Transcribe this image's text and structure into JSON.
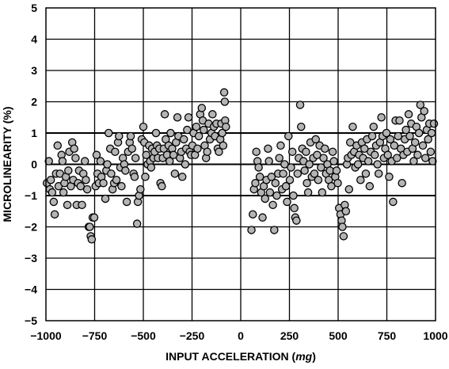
{
  "chart_data": {
    "type": "scatter",
    "title": "",
    "xlabel": "INPUT ACCELERATION (mg)",
    "xlabel_parts": [
      "INPUT ACCELERATION (",
      "mg",
      ")"
    ],
    "ylabel": "MICROLINEARITY (%)",
    "xlim": [
      -1000,
      1000
    ],
    "ylim": [
      -5,
      5
    ],
    "x_ticks": [
      -1000,
      -750,
      -500,
      -250,
      0,
      250,
      500,
      750,
      1000
    ],
    "x_tick_labels": [
      "−1000",
      "−750",
      "−500",
      "−250",
      "0",
      "250",
      "500",
      "750",
      "1000"
    ],
    "y_ticks": [
      5,
      4,
      3,
      2,
      1,
      0,
      -1,
      -2,
      -3,
      -4,
      -5
    ],
    "y_tick_labels": [
      "5",
      "4",
      "3",
      "2",
      "1",
      "0",
      "−1",
      "−2",
      "−3",
      "−4",
      "−5"
    ],
    "grid": true,
    "heavy_gridlines_y": [
      1,
      0,
      -1
    ],
    "legend": "none",
    "marker_fill": "#b4b4b4",
    "marker_edge": "#000000",
    "points": [
      [
        -995,
        -0.6
      ],
      [
        -985,
        0.1
      ],
      [
        -980,
        -0.8
      ],
      [
        -975,
        -0.5
      ],
      [
        -968,
        -0.9
      ],
      [
        -960,
        -1.2
      ],
      [
        -955,
        -1.6
      ],
      [
        -948,
        -0.3
      ],
      [
        -940,
        0.6
      ],
      [
        -935,
        -0.7
      ],
      [
        -928,
        -0.3
      ],
      [
        -920,
        0.3
      ],
      [
        -915,
        0.1
      ],
      [
        -910,
        -0.9
      ],
      [
        -905,
        -0.6
      ],
      [
        -898,
        -0.4
      ],
      [
        -890,
        -1.3
      ],
      [
        -885,
        -0.2
      ],
      [
        -880,
        0.4
      ],
      [
        -872,
        -0.7
      ],
      [
        -865,
        0.7
      ],
      [
        -860,
        -0.5
      ],
      [
        -855,
        0.5
      ],
      [
        -848,
        0.2
      ],
      [
        -842,
        -1.3
      ],
      [
        -835,
        -0.6
      ],
      [
        -830,
        -0.2
      ],
      [
        -822,
        -0.7
      ],
      [
        -815,
        -1.3
      ],
      [
        -808,
        -0.3
      ],
      [
        -800,
        0.1
      ],
      [
        -795,
        -0.5
      ],
      [
        -788,
        -0.8
      ],
      [
        -780,
        -2.0
      ],
      [
        -775,
        -2.0
      ],
      [
        -770,
        -2.3
      ],
      [
        -765,
        -2.4
      ],
      [
        -760,
        -1.7
      ],
      [
        -752,
        -1.7
      ],
      [
        -745,
        -0.7
      ],
      [
        -740,
        0.3
      ],
      [
        -735,
        -0.3
      ],
      [
        -728,
        -0.6
      ],
      [
        -720,
        0.1
      ],
      [
        -715,
        -0.4
      ],
      [
        -705,
        -0.6
      ],
      [
        -695,
        -1.1
      ],
      [
        -690,
        -0.2
      ],
      [
        -685,
        0.0
      ],
      [
        -678,
        1.0
      ],
      [
        -670,
        0.5
      ],
      [
        -665,
        -0.3
      ],
      [
        -658,
        -0.8
      ],
      [
        -650,
        -0.6
      ],
      [
        -645,
        0.4
      ],
      [
        -638,
        -0.5
      ],
      [
        -630,
        0.7
      ],
      [
        -625,
        0.9
      ],
      [
        -618,
        -0.1
      ],
      [
        -612,
        -0.7
      ],
      [
        -605,
        0.2
      ],
      [
        -598,
        0.0
      ],
      [
        -592,
        -0.2
      ],
      [
        -585,
        -1.2
      ],
      [
        -578,
        0.4
      ],
      [
        -570,
        0.7
      ],
      [
        -565,
        0.9
      ],
      [
        -558,
        0.5
      ],
      [
        -550,
        -0.3
      ],
      [
        -545,
        -0.4
      ],
      [
        -540,
        0.2
      ],
      [
        -532,
        -1.9
      ],
      [
        -528,
        -1.2
      ],
      [
        -522,
        -1.0
      ],
      [
        -515,
        -0.8
      ],
      [
        -508,
        0.8
      ],
      [
        -500,
        1.2
      ],
      [
        -495,
        0.7
      ],
      [
        -490,
        -0.4
      ],
      [
        -485,
        0.3
      ],
      [
        -478,
        0.0
      ],
      [
        -470,
        0.6
      ],
      [
        -465,
        0.1
      ],
      [
        -460,
        -0.1
      ],
      [
        -455,
        0.5
      ],
      [
        -448,
        0.2
      ],
      [
        -442,
        0.4
      ],
      [
        -435,
        1.0
      ],
      [
        -430,
        0.6
      ],
      [
        -425,
        0.2
      ],
      [
        -418,
        0.5
      ],
      [
        -412,
        -0.6
      ],
      [
        -405,
        -0.7
      ],
      [
        -400,
        0.2
      ],
      [
        -395,
        0.5
      ],
      [
        -390,
        1.6
      ],
      [
        -385,
        0.8
      ],
      [
        -378,
        0.3
      ],
      [
        -370,
        0.6
      ],
      [
        -365,
        0.1
      ],
      [
        -360,
        1.0
      ],
      [
        -352,
        0.5
      ],
      [
        -345,
        0.3
      ],
      [
        -338,
        -0.3
      ],
      [
        -332,
        0.7
      ],
      [
        -325,
        1.5
      ],
      [
        -320,
        0.9
      ],
      [
        -312,
        0.2
      ],
      [
        -305,
        0.4
      ],
      [
        -300,
        -0.4
      ],
      [
        -292,
        0.8
      ],
      [
        -285,
        0.0
      ],
      [
        -280,
        0.5
      ],
      [
        -275,
        1.1
      ],
      [
        -268,
        1.5
      ],
      [
        -262,
        0.4
      ],
      [
        -255,
        0.3
      ],
      [
        -248,
        0.6
      ],
      [
        -242,
        1.0
      ],
      [
        -235,
        0.3
      ],
      [
        -228,
        1.2
      ],
      [
        -222,
        0.5
      ],
      [
        -215,
        0.9
      ],
      [
        -208,
        1.6
      ],
      [
        -200,
        1.8
      ],
      [
        -195,
        1.4
      ],
      [
        -190,
        1.1
      ],
      [
        -185,
        0.6
      ],
      [
        -178,
        0.2
      ],
      [
        -172,
        0.4
      ],
      [
        -165,
        1.3
      ],
      [
        -158,
        0.8
      ],
      [
        -150,
        1.0
      ],
      [
        -145,
        1.6
      ],
      [
        -138,
        1.2
      ],
      [
        -132,
        0.9
      ],
      [
        -125,
        1.3
      ],
      [
        -118,
        0.5
      ],
      [
        -112,
        0.4
      ],
      [
        -105,
        0.8
      ],
      [
        -100,
        1.3
      ],
      [
        -95,
        1.0
      ],
      [
        -90,
        0.6
      ],
      [
        -85,
        2.3
      ],
      [
        -82,
        2.0
      ],
      [
        -80,
        1.4
      ],
      [
        -76,
        1.2
      ],
      [
        55,
        -2.1
      ],
      [
        62,
        -1.6
      ],
      [
        68,
        -0.8
      ],
      [
        75,
        -0.6
      ],
      [
        80,
        0.4
      ],
      [
        86,
        0.1
      ],
      [
        92,
        -0.1
      ],
      [
        98,
        -0.4
      ],
      [
        105,
        -0.9
      ],
      [
        112,
        -1.7
      ],
      [
        118,
        -0.7
      ],
      [
        125,
        -1.1
      ],
      [
        132,
        -0.5
      ],
      [
        140,
        0.5
      ],
      [
        145,
        0.1
      ],
      [
        150,
        -0.9
      ],
      [
        158,
        -0.4
      ],
      [
        165,
        -1.3
      ],
      [
        172,
        -2.1
      ],
      [
        178,
        -0.6
      ],
      [
        185,
        -1.0
      ],
      [
        192,
        -0.3
      ],
      [
        198,
        0.2
      ],
      [
        205,
        0.6
      ],
      [
        212,
        -0.8
      ],
      [
        218,
        -0.3
      ],
      [
        225,
        0.0
      ],
      [
        232,
        -0.7
      ],
      [
        238,
        -1.2
      ],
      [
        245,
        0.9
      ],
      [
        252,
        -0.5
      ],
      [
        258,
        -0.1
      ],
      [
        265,
        0.4
      ],
      [
        270,
        -1.0
      ],
      [
        275,
        -1.4
      ],
      [
        280,
        -1.7
      ],
      [
        286,
        -1.8
      ],
      [
        292,
        -0.3
      ],
      [
        298,
        0.2
      ],
      [
        305,
        1.9
      ],
      [
        310,
        1.2
      ],
      [
        316,
        0.5
      ],
      [
        322,
        0.1
      ],
      [
        328,
        -0.2
      ],
      [
        335,
        0.4
      ],
      [
        340,
        -0.6
      ],
      [
        346,
        -0.9
      ],
      [
        352,
        0.0
      ],
      [
        358,
        0.7
      ],
      [
        365,
        -0.4
      ],
      [
        372,
        0.2
      ],
      [
        378,
        -0.3
      ],
      [
        385,
        0.8
      ],
      [
        392,
        0.3
      ],
      [
        398,
        -0.5
      ],
      [
        405,
        0.6
      ],
      [
        412,
        -0.1
      ],
      [
        418,
        -0.9
      ],
      [
        425,
        0.2
      ],
      [
        432,
        0.5
      ],
      [
        438,
        -0.3
      ],
      [
        445,
        0.0
      ],
      [
        452,
        -0.5
      ],
      [
        458,
        -0.2
      ],
      [
        465,
        -0.7
      ],
      [
        472,
        0.4
      ],
      [
        478,
        0.1
      ],
      [
        485,
        -0.4
      ],
      [
        492,
        -0.2
      ],
      [
        498,
        -0.6
      ],
      [
        505,
        -1.4
      ],
      [
        512,
        -1.6
      ],
      [
        518,
        -1.8
      ],
      [
        522,
        -2.0
      ],
      [
        528,
        -2.3
      ],
      [
        534,
        -1.3
      ],
      [
        540,
        -1.5
      ],
      [
        545,
        0.0
      ],
      [
        550,
        0.2
      ],
      [
        556,
        -0.8
      ],
      [
        562,
        0.7
      ],
      [
        568,
        0.3
      ],
      [
        575,
        1.2
      ],
      [
        582,
        0.4
      ],
      [
        588,
        -0.1
      ],
      [
        595,
        0.6
      ],
      [
        602,
        0.0
      ],
      [
        608,
        0.3
      ],
      [
        615,
        -0.5
      ],
      [
        622,
        0.7
      ],
      [
        628,
        0.2
      ],
      [
        635,
        0.5
      ],
      [
        642,
        -0.3
      ],
      [
        648,
        0.8
      ],
      [
        655,
        0.1
      ],
      [
        662,
        -0.7
      ],
      [
        668,
        0.4
      ],
      [
        675,
        0.9
      ],
      [
        682,
        1.2
      ],
      [
        688,
        0.3
      ],
      [
        695,
        0.6
      ],
      [
        702,
        0.0
      ],
      [
        708,
        -0.3
      ],
      [
        715,
        0.7
      ],
      [
        722,
        1.5
      ],
      [
        728,
        0.9
      ],
      [
        735,
        0.2
      ],
      [
        742,
        0.5
      ],
      [
        748,
        1.0
      ],
      [
        755,
        0.3
      ],
      [
        762,
        -0.4
      ],
      [
        768,
        0.8
      ],
      [
        775,
        0.1
      ],
      [
        782,
        -1.2
      ],
      [
        788,
        0.6
      ],
      [
        795,
        1.4
      ],
      [
        802,
        0.2
      ],
      [
        808,
        0.9
      ],
      [
        815,
        1.4
      ],
      [
        822,
        0.5
      ],
      [
        828,
        -0.6
      ],
      [
        835,
        0.3
      ],
      [
        842,
        0.8
      ],
      [
        848,
        1.1
      ],
      [
        855,
        0.4
      ],
      [
        862,
        1.6
      ],
      [
        868,
        0.9
      ],
      [
        875,
        1.3
      ],
      [
        882,
        0.5
      ],
      [
        888,
        0.1
      ],
      [
        895,
        0.7
      ],
      [
        902,
        1.2
      ],
      [
        908,
        0.3
      ],
      [
        915,
        1.0
      ],
      [
        922,
        1.9
      ],
      [
        928,
        1.5
      ],
      [
        935,
        0.6
      ],
      [
        942,
        1.7
      ],
      [
        948,
        0.2
      ],
      [
        955,
        1.1
      ],
      [
        962,
        0.8
      ],
      [
        968,
        1.3
      ],
      [
        975,
        0.4
      ],
      [
        980,
        1.0
      ],
      [
        985,
        0.1
      ],
      [
        992,
        1.3
      ]
    ]
  }
}
